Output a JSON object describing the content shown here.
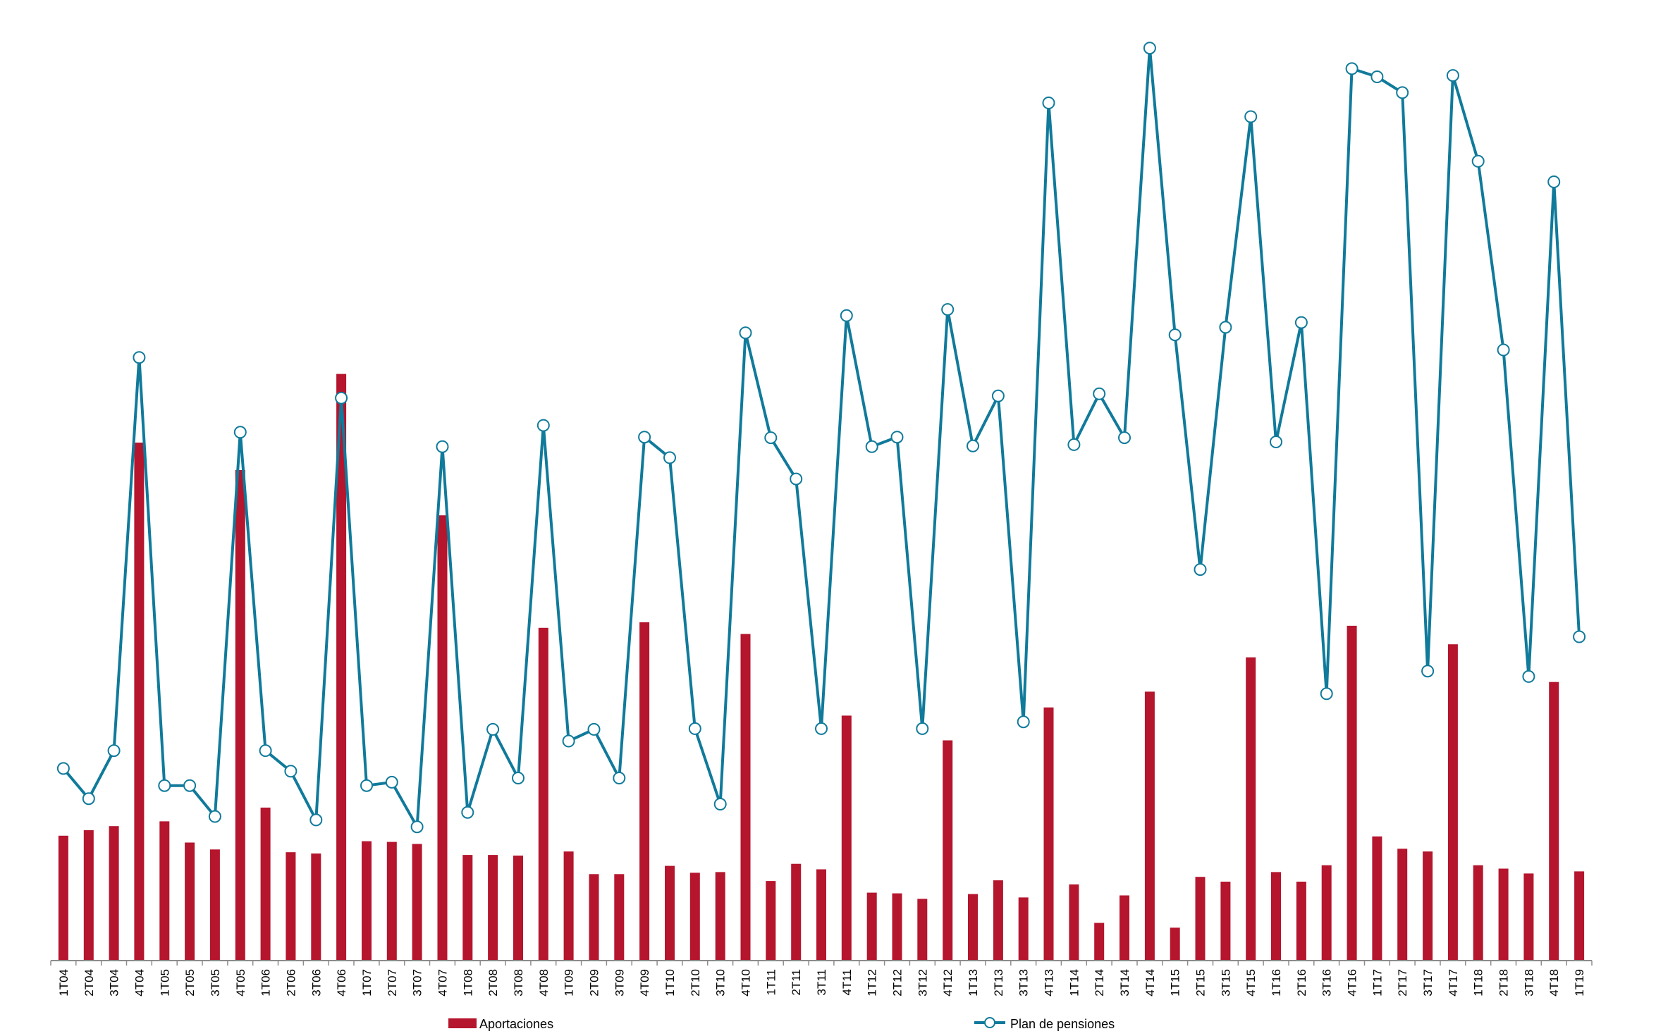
{
  "chart_data": {
    "type": "bar",
    "categories": [
      "1T04",
      "2T04",
      "3T04",
      "4T04",
      "1T05",
      "2T05",
      "3T05",
      "4T05",
      "1T06",
      "2T06",
      "3T06",
      "4T06",
      "1T07",
      "2T07",
      "3T07",
      "4T07",
      "1T08",
      "2T08",
      "3T08",
      "4T08",
      "1T09",
      "2T09",
      "3T09",
      "4T09",
      "1T10",
      "2T10",
      "3T10",
      "4T10",
      "1T11",
      "2T11",
      "3T11",
      "4T11",
      "1T12",
      "2T12",
      "3T12",
      "4T12",
      "1T13",
      "2T13",
      "3T13",
      "4T13",
      "1T14",
      "2T14",
      "3T14",
      "4T14",
      "1T15",
      "2T15",
      "3T15",
      "4T15",
      "1T16",
      "2T16",
      "3T16",
      "4T16",
      "1T17",
      "2T17",
      "3T17",
      "4T17",
      "1T18",
      "2T18",
      "3T18",
      "4T18",
      "1T19"
    ],
    "series": [
      {
        "name": "Aportaciones",
        "type": "bar",
        "color": "#b5152d",
        "values": [
          182,
          190,
          196,
          755,
          203,
          172,
          162,
          715,
          223,
          158,
          156,
          855,
          174,
          173,
          170,
          649,
          154,
          154,
          153,
          485,
          159,
          126,
          126,
          493,
          138,
          128,
          129,
          476,
          116,
          141,
          133,
          357,
          99,
          98,
          90,
          321,
          97,
          117,
          92,
          369,
          111,
          55,
          95,
          392,
          48,
          122,
          115,
          442,
          129,
          115,
          139,
          488,
          181,
          163,
          159,
          461,
          139,
          134,
          127,
          406,
          130
        ]
      },
      {
        "name": "Plan de pensiones",
        "type": "line",
        "color": "#107a9b",
        "values": [
          280,
          236,
          306,
          879,
          255,
          255,
          210,
          770,
          306,
          276,
          205,
          820,
          255,
          260,
          195,
          749,
          216,
          337,
          266,
          780,
          320,
          337,
          266,
          763,
          733,
          338,
          228,
          915,
          762,
          702,
          338,
          940,
          749,
          763,
          338,
          949,
          750,
          823,
          348,
          1250,
          752,
          826,
          762,
          1330,
          912,
          570,
          923,
          1230,
          756,
          930,
          389,
          1300,
          1288,
          1265,
          422,
          1290,
          1165,
          890,
          414,
          1135,
          472
        ]
      }
    ],
    "ylim": [
      0,
      1400
    ],
    "title": "",
    "xlabel": "",
    "ylabel": "",
    "grid": false,
    "legend_position": "bottom"
  }
}
